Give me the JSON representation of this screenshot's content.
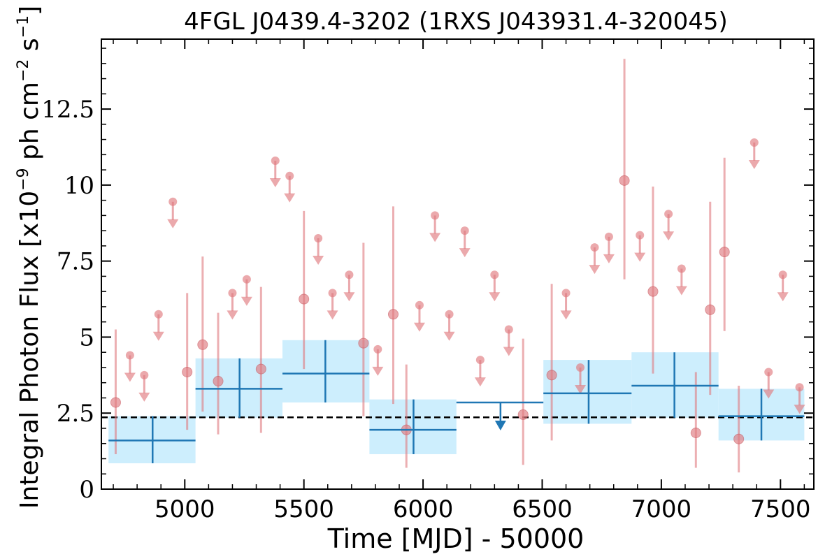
{
  "chart_data": {
    "type": "scatter",
    "title": "4FGL J0439.4-3202 (1RXS J043931.4-320045)",
    "xlabel": "Time [MJD] - 50000",
    "ylabel": "Integral Photon Flux [x10",
    "ylabel_exp1": "−9",
    "ylabel_mid": " ph cm",
    "ylabel_exp2": "−2",
    "ylabel_end": " s",
    "ylabel_exp3": "−1",
    "ylabel_close": "]",
    "xlim": [
      4650,
      7640
    ],
    "ylim": [
      0,
      14.8
    ],
    "xticks": [
      5000,
      5500,
      6000,
      6500,
      7000,
      7500
    ],
    "xtick_labels": [
      "5000",
      "5500",
      "6000",
      "6500",
      "7000",
      "7500"
    ],
    "yticks": [
      0,
      2.5,
      5,
      7.5,
      10,
      12.5
    ],
    "ytick_labels": [
      "0",
      "2.5",
      "5",
      "7.5",
      "10",
      "12.5"
    ],
    "mean_flux": 2.36,
    "colors": {
      "detection": "#e07b80",
      "binned": "#1f77b4",
      "band": "#cdeefd",
      "mean": "#000000"
    },
    "series": [
      {
        "kind": "short-bin-detections",
        "points": [
          {
            "x": 4710,
            "y": 2.85,
            "lo": 1.15,
            "hi": 5.25
          },
          {
            "x": 5010,
            "y": 3.85,
            "lo": 1.95,
            "hi": 6.45
          },
          {
            "x": 5075,
            "y": 4.75,
            "lo": 2.55,
            "hi": 7.65
          },
          {
            "x": 5140,
            "y": 3.55,
            "lo": 1.8,
            "hi": 5.8
          },
          {
            "x": 5320,
            "y": 3.95,
            "lo": 1.85,
            "hi": 6.65
          },
          {
            "x": 5500,
            "y": 6.25,
            "lo": 3.95,
            "hi": 9.15
          },
          {
            "x": 5750,
            "y": 4.8,
            "lo": 2.4,
            "hi": 8.1
          },
          {
            "x": 5875,
            "y": 5.75,
            "lo": 2.8,
            "hi": 9.3
          },
          {
            "x": 5930,
            "y": 1.95,
            "lo": 0.7,
            "hi": 4.1
          },
          {
            "x": 6420,
            "y": 2.45,
            "lo": 0.8,
            "hi": 4.95
          },
          {
            "x": 6540,
            "y": 3.75,
            "lo": 1.6,
            "hi": 6.75
          },
          {
            "x": 6845,
            "y": 10.15,
            "lo": 6.9,
            "hi": 14.15
          },
          {
            "x": 6965,
            "y": 6.5,
            "lo": 3.8,
            "hi": 9.95
          },
          {
            "x": 7145,
            "y": 1.85,
            "lo": 0.7,
            "hi": 3.85
          },
          {
            "x": 7205,
            "y": 5.9,
            "lo": 3.1,
            "hi": 9.45
          },
          {
            "x": 7265,
            "y": 7.8,
            "lo": 5.2,
            "hi": 10.9
          },
          {
            "x": 7325,
            "y": 1.65,
            "lo": 0.55,
            "hi": 3.4
          }
        ]
      },
      {
        "kind": "short-bin-upper-limits",
        "points": [
          {
            "x": 4770,
            "y": 4.4
          },
          {
            "x": 4830,
            "y": 3.75
          },
          {
            "x": 4890,
            "y": 5.75
          },
          {
            "x": 4950,
            "y": 9.45
          },
          {
            "x": 5200,
            "y": 6.45
          },
          {
            "x": 5260,
            "y": 6.9
          },
          {
            "x": 5380,
            "y": 10.8
          },
          {
            "x": 5440,
            "y": 10.3
          },
          {
            "x": 5560,
            "y": 8.25
          },
          {
            "x": 5620,
            "y": 6.45
          },
          {
            "x": 5690,
            "y": 7.05
          },
          {
            "x": 5810,
            "y": 4.6
          },
          {
            "x": 5985,
            "y": 6.05
          },
          {
            "x": 6050,
            "y": 9.0
          },
          {
            "x": 6110,
            "y": 5.75
          },
          {
            "x": 6175,
            "y": 8.5
          },
          {
            "x": 6240,
            "y": 4.25
          },
          {
            "x": 6300,
            "y": 7.05
          },
          {
            "x": 6360,
            "y": 5.25
          },
          {
            "x": 6600,
            "y": 6.45
          },
          {
            "x": 6660,
            "y": 4.0
          },
          {
            "x": 6720,
            "y": 7.95
          },
          {
            "x": 6780,
            "y": 8.3
          },
          {
            "x": 6910,
            "y": 8.35
          },
          {
            "x": 7030,
            "y": 9.05
          },
          {
            "x": 7085,
            "y": 7.25
          },
          {
            "x": 7390,
            "y": 11.4
          },
          {
            "x": 7450,
            "y": 3.85
          },
          {
            "x": 7510,
            "y": 7.05
          },
          {
            "x": 7580,
            "y": 3.35
          }
        ]
      },
      {
        "kind": "long-bin-detections",
        "points": [
          {
            "x": 4865,
            "xmin": 4680,
            "xmax": 5045,
            "y": 1.6,
            "lo": 0.85,
            "hi": 2.4
          },
          {
            "x": 5230,
            "xmin": 5045,
            "xmax": 5410,
            "y": 3.3,
            "lo": 2.35,
            "hi": 4.3
          },
          {
            "x": 5590,
            "xmin": 5410,
            "xmax": 5775,
            "y": 3.8,
            "lo": 2.85,
            "hi": 4.9
          },
          {
            "x": 5960,
            "xmin": 5775,
            "xmax": 6140,
            "y": 1.95,
            "lo": 1.15,
            "hi": 2.95
          },
          {
            "x": 6695,
            "xmin": 6505,
            "xmax": 6875,
            "y": 3.15,
            "lo": 2.15,
            "hi": 4.25
          },
          {
            "x": 7055,
            "xmin": 6875,
            "xmax": 7240,
            "y": 3.4,
            "lo": 2.35,
            "hi": 4.5
          },
          {
            "x": 7420,
            "xmin": 7240,
            "xmax": 7600,
            "y": 2.4,
            "lo": 1.6,
            "hi": 3.3
          }
        ]
      },
      {
        "kind": "long-bin-upper-limits",
        "points": [
          {
            "x": 6325,
            "xmin": 6140,
            "xmax": 6505,
            "y": 2.85
          }
        ]
      }
    ]
  }
}
